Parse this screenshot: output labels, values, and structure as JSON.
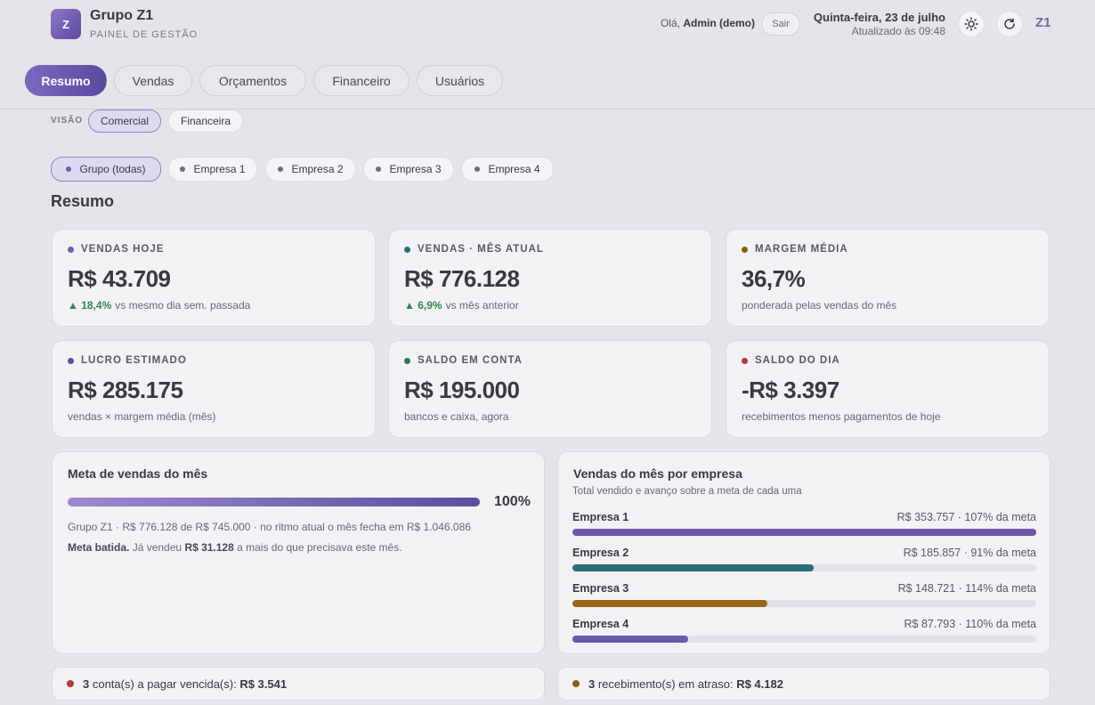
{
  "header": {
    "logo_letter": "Z",
    "brand_title": "Grupo Z1",
    "brand_subtitle": "PAINEL DE GESTÃO",
    "greeting_prefix": "Olá,",
    "greeting_user": "Admin (demo)",
    "logout_label": "Sair",
    "date": "Quinta-feira, 23 de julho",
    "updated": "Atualizado às 09:48",
    "mark": "Z1"
  },
  "tabs": [
    {
      "label": "Resumo",
      "active": true
    },
    {
      "label": "Vendas",
      "active": false
    },
    {
      "label": "Orçamentos",
      "active": false
    },
    {
      "label": "Financeiro",
      "active": false
    },
    {
      "label": "Usuários",
      "active": false
    }
  ],
  "visao": {
    "label": "VISÃO",
    "options": [
      "Comercial",
      "Financeira"
    ],
    "selected": "Comercial"
  },
  "companies": {
    "options": [
      "Grupo (todas)",
      "Empresa 1",
      "Empresa 2",
      "Empresa 3",
      "Empresa 4"
    ],
    "selected": "Grupo (todas)"
  },
  "section_title": "Resumo",
  "kpis": [
    {
      "label": "VENDAS HOJE",
      "value": "R$ 43.709",
      "delta": "▲ 18,4%",
      "sub": "vs mesmo dia sem. passada",
      "color": "#6e5fb5"
    },
    {
      "label": "VENDAS · MÊS ATUAL",
      "value": "R$ 776.128",
      "delta": "▲ 6,9%",
      "sub": "vs mês anterior",
      "color": "#2a6e78"
    },
    {
      "label": "MARGEM MÉDIA",
      "value": "36,7%",
      "delta": "",
      "sub": "ponderada pelas vendas do mês",
      "color": "#8a5d16"
    },
    {
      "label": "LUCRO ESTIMADO",
      "value": "R$ 285.175",
      "delta": "",
      "sub": "vendas × margem média (mês)",
      "color": "#5a509e"
    },
    {
      "label": "SALDO EM CONTA",
      "value": "R$ 195.000",
      "delta": "",
      "sub": "bancos e caixa, agora",
      "color": "#2f7a4a"
    },
    {
      "label": "SALDO DO DIA",
      "value": "-R$ 3.397",
      "delta": "",
      "sub": "recebimentos menos pagamentos de hoje",
      "color": "#b23a3a"
    }
  ],
  "meta": {
    "title": "Meta de vendas do mês",
    "progress": 1.0,
    "percent_label": "100%",
    "line1": "Grupo Z1 · R$ 776.128 de R$ 745.000 · no ritmo atual o mês fecha em R$ 1.046.086",
    "line2_bold1": "Meta batida.",
    "line2_text1": " Já vendeu ",
    "line2_bold2": "R$ 31.128",
    "line2_text2": " a mais do que precisava este mês."
  },
  "empresas": {
    "title": "Vendas do mês por empresa",
    "subtitle": "Total vendido e avanço sobre a meta de cada uma",
    "rows": [
      {
        "name": "Empresa 1",
        "value": "R$ 353.757 · 107% da meta",
        "fill": 1.0,
        "color": "#6a58ac"
      },
      {
        "name": "Empresa 2",
        "value": "R$ 185.857 · 91% da meta",
        "fill": 0.52,
        "color": "#2a6e78"
      },
      {
        "name": "Empresa 3",
        "value": "R$ 148.721 · 114% da meta",
        "fill": 0.42,
        "color": "#9a661a"
      },
      {
        "name": "Empresa 4",
        "value": "R$ 87.793 · 110% da meta",
        "fill": 0.25,
        "color": "#6a58ac"
      }
    ]
  },
  "alerts": [
    {
      "count": "3",
      "text": " conta(s) a pagar vencida(s): ",
      "amount": "R$ 3.541",
      "color": "#b23a3a"
    },
    {
      "count": "3",
      "text": " recebimento(s) em atraso: ",
      "amount": "R$ 4.182",
      "color": "#8a5d16"
    }
  ]
}
